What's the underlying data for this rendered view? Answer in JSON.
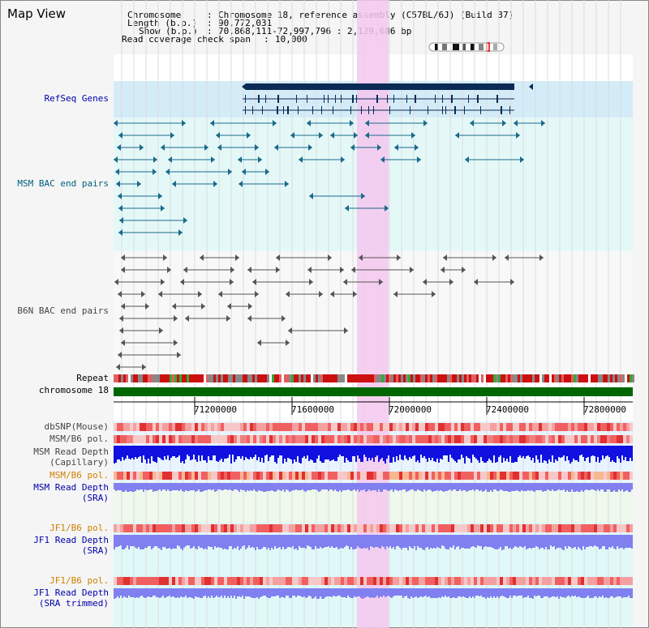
{
  "app": {
    "title": "Map View"
  },
  "header": {
    "chromosome_key": "Chromosome",
    "chromosome_value": "Chromosome 18, reference assembly (C57BL/6J) (Build 37)",
    "length_key": "Length (b.p.)",
    "length_value": "90,772,031",
    "show_key": "Show (b.p.)",
    "show_value": "70,868,111-72,997,796 : 2,129,686 bp",
    "coverage_key": "Read coverage check span",
    "coverage_value": "10,000"
  },
  "tracks": {
    "refseq": "RefSeq Genes",
    "msm_bac": "MSM BAC end pairs",
    "b6n_bac": "B6N BAC end pairs",
    "repeat": "Repeat",
    "chromosome": "chromosome 18",
    "dbsnp": "dbSNP(Mouse)",
    "msm_b6_pol_1": "MSM/B6 pol.",
    "msm_read_depth_cap_1": "MSM Read Depth",
    "msm_read_depth_cap_2": "(Capillary)",
    "msm_b6_pol_2": "MSM/B6 pol.",
    "msm_read_depth_sra_1": "MSM Read Depth",
    "msm_read_depth_sra_2": "(SRA)",
    "jf1_b6_pol_1": "JF1/B6 pol.",
    "jf1_read_depth_sra_1": "JF1 Read Depth",
    "jf1_read_depth_sra_2": "(SRA)",
    "jf1_b6_pol_2": "JF1/B6 pol.",
    "jf1_read_depth_trim_1": "JF1 Read Depth",
    "jf1_read_depth_trim_2": "(SRA trimmed)"
  },
  "axis": {
    "ticks": [
      "71200000",
      "71600000",
      "72000000",
      "72400000",
      "72800000"
    ]
  },
  "colors": {
    "highlight": "#f5c8ee",
    "refseq_bg": "#d4ecf8",
    "gene": "#0b2a55",
    "bac_msm": "#1a6a8a",
    "bac_b6n": "#555555",
    "chromosome_bar": "#006600",
    "depth_cap": "#1010e0",
    "depth_sra": "#8080f0",
    "snp": "#f08080"
  }
}
